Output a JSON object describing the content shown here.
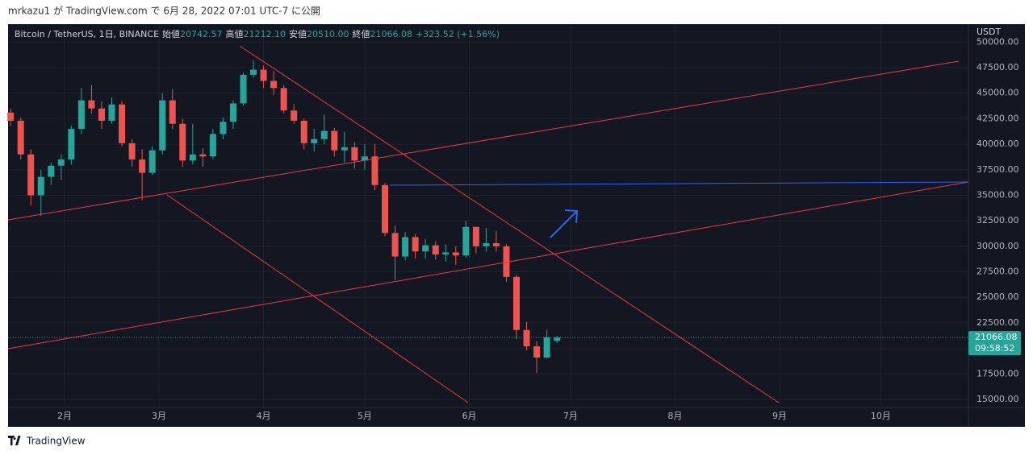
{
  "published": "mrkazu1 が TradingView.com で 6月 28, 2022 07:01 UTC-7 に公開",
  "footer_brand": "TradingView",
  "chart_data": {
    "type": "candlestick",
    "title": "Bitcoin / TetherUS, 1日, BINANCE",
    "legend_items": [
      {
        "label": "始値",
        "value": "20742.57"
      },
      {
        "label": "高値",
        "value": "21212.10"
      },
      {
        "label": "安値",
        "value": "20510.00"
      },
      {
        "label": "終値",
        "value": "21066.08"
      }
    ],
    "change": "+323.52 (+1.56%)",
    "currency": "USDT",
    "last_price": 21066.08,
    "countdown": "09:58:52",
    "up_color": "#26a69a",
    "down_color": "#ef5350",
    "grid": true,
    "x": [
      16,
      19,
      22,
      25,
      28,
      31,
      34,
      37,
      40,
      43,
      46,
      49,
      52,
      55,
      58,
      61,
      64,
      67,
      70,
      73,
      76,
      79,
      82,
      85,
      88,
      91,
      94,
      97,
      100,
      103,
      106,
      109,
      112,
      115,
      118,
      121,
      124,
      127,
      130,
      133,
      136,
      139,
      142,
      145,
      148,
      151,
      154,
      157,
      160,
      163,
      166,
      169,
      172,
      175,
      178
    ],
    "open": [
      43100,
      42300,
      39000,
      35000,
      36800,
      37900,
      38500,
      41500,
      44300,
      43500,
      42300,
      43900,
      40100,
      38500,
      37200,
      39400,
      44300,
      42000,
      38400,
      39000,
      38800,
      41000,
      42200,
      44000,
      46800,
      47300,
      46200,
      45500,
      43300,
      42300,
      40100,
      40500,
      41300,
      39400,
      39700,
      38400,
      38800,
      36000,
      31300,
      29000,
      30900,
      29500,
      30100,
      29200,
      29400,
      29100,
      31900,
      30000,
      30300,
      30000,
      27000,
      21800,
      20200,
      19100,
      20742.57
    ],
    "high": [
      43500,
      42600,
      39500,
      37500,
      38200,
      39000,
      41800,
      45500,
      45800,
      44200,
      44600,
      44200,
      40500,
      39500,
      39800,
      45000,
      45400,
      42500,
      42000,
      39600,
      41500,
      42600,
      44300,
      47000,
      48200,
      47700,
      47200,
      45800,
      43900,
      42500,
      41500,
      42900,
      41600,
      41200,
      40200,
      40000,
      40000,
      36200,
      32000,
      31400,
      31200,
      30700,
      30500,
      30200,
      30000,
      32500,
      31900,
      31800,
      31500,
      30200,
      27200,
      22600,
      20700,
      21800,
      21212.1
    ],
    "low": [
      41800,
      38500,
      34000,
      33000,
      36000,
      36500,
      38000,
      41000,
      43000,
      41500,
      42000,
      39800,
      37800,
      34500,
      37000,
      39000,
      41500,
      37800,
      38000,
      37800,
      38500,
      40500,
      41500,
      43800,
      46500,
      45500,
      44800,
      43000,
      42000,
      39500,
      39300,
      40000,
      38800,
      38200,
      37600,
      37500,
      35500,
      31000,
      26700,
      28600,
      28800,
      28800,
      28700,
      28500,
      28200,
      28900,
      29300,
      29500,
      29500,
      26500,
      20900,
      19800,
      17600,
      19000,
      20510.0
    ],
    "close": [
      42300,
      39000,
      35000,
      36800,
      37900,
      38500,
      41500,
      44300,
      43500,
      42300,
      43900,
      40100,
      38500,
      37200,
      39400,
      44300,
      42000,
      38400,
      39000,
      38800,
      41000,
      42200,
      44000,
      46800,
      47300,
      46200,
      45500,
      43300,
      42300,
      40100,
      40500,
      41300,
      39400,
      39700,
      38400,
      38800,
      36000,
      31300,
      29000,
      30900,
      29500,
      30100,
      29200,
      29400,
      29100,
      31900,
      30000,
      30300,
      30000,
      27000,
      21800,
      20200,
      19100,
      21100,
      21066.08
    ],
    "xlim": [
      15.25,
      300
    ],
    "xticks": [
      {
        "value": 32,
        "label": "2月"
      },
      {
        "value": 60,
        "label": "3月"
      },
      {
        "value": 91,
        "label": "4月"
      },
      {
        "value": 121,
        "label": "5月"
      },
      {
        "value": 152,
        "label": "6月"
      },
      {
        "value": 182,
        "label": "7月"
      },
      {
        "value": 213,
        "label": "8月"
      },
      {
        "value": 244,
        "label": "9月"
      },
      {
        "value": 274,
        "label": "10月"
      }
    ],
    "ylim": [
      14210,
      51760
    ],
    "yticks": [
      {
        "value": 15000,
        "label": "15000.00"
      },
      {
        "value": 17500,
        "label": "17500.00"
      },
      {
        "value": 20000,
        "label": "20000.00"
      },
      {
        "value": 22500,
        "label": "22500.00"
      },
      {
        "value": 25000,
        "label": "25000.00"
      },
      {
        "value": 27500,
        "label": "27500.00"
      },
      {
        "value": 30000,
        "label": "30000.00"
      },
      {
        "value": 32500,
        "label": "32500.00"
      },
      {
        "value": 35000,
        "label": "35000.00"
      },
      {
        "value": 37500,
        "label": "37500.00"
      },
      {
        "value": 40000,
        "label": "40000.00"
      },
      {
        "value": 42500,
        "label": "42500.00"
      },
      {
        "value": 45000,
        "label": "45000.00"
      },
      {
        "value": 47500,
        "label": "47500.00"
      },
      {
        "value": 50000,
        "label": "50000.00"
      }
    ]
  }
}
